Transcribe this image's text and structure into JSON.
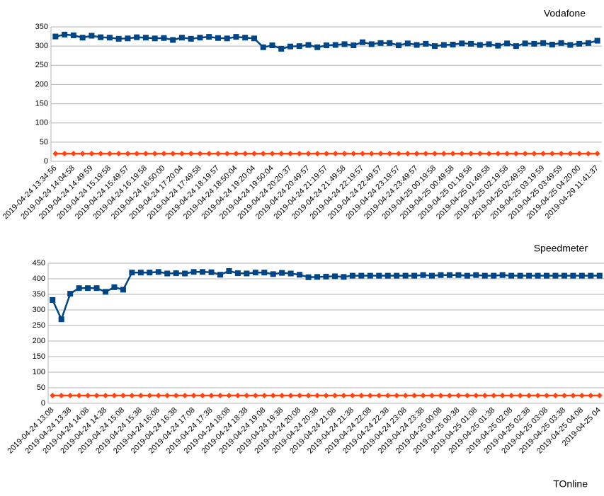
{
  "chart_data": [
    {
      "type": "line",
      "title": "Vodafone",
      "categories": [
        "2019-04-24 13:34:56",
        null,
        "2019-04-24 14:04:58",
        null,
        "2019-04-24 14:49:59",
        null,
        "2019-04-24 15:19:58",
        null,
        "2019-04-24 15:49:57",
        null,
        "2019-04-24 16:19:58",
        null,
        "2019-04-24 16:50:00",
        null,
        "2019-04-24 17:20:04",
        null,
        "2019-04-24 17:49:58",
        null,
        "2019-04-24 18:19:57",
        null,
        "2019-04-24 18:50:04",
        null,
        "2019-04-24 19:20:04",
        null,
        "2019-04-24 19:50:04",
        null,
        "2019-04-24 20:20:37",
        null,
        "2019-04-24 20:49:57",
        null,
        "2019-04-24 21:19:57",
        null,
        "2019-04-24 21:49:58",
        null,
        "2019-04-24 22:19:57",
        null,
        "2019-04-24 22:49:57",
        null,
        "2019-04-24 23:19:57",
        null,
        "2019-04-24 23:49:57",
        null,
        "2019-04-25 00:19:58",
        null,
        "2019-04-25 00:49:58",
        null,
        "2019-04-25 01:19:58",
        null,
        "2019-04-25 01:49:58",
        null,
        "2019-04-25 02:19:58",
        null,
        "2019-04-25 02:49:59",
        null,
        "2019-04-25 03:19:59",
        null,
        "2019-04-25 03:49:59",
        null,
        "2019-04-25 04:20:00",
        null,
        "2019-04-29 11:41:37"
      ],
      "series": [
        {
          "color": "#004586",
          "marker": "square",
          "values": [
            325,
            330,
            328,
            322,
            327,
            323,
            322,
            319,
            320,
            323,
            322,
            320,
            321,
            316,
            322,
            319,
            322,
            324,
            321,
            320,
            324,
            322,
            320,
            297,
            302,
            293,
            299,
            300,
            303,
            297,
            302,
            303,
            305,
            302,
            310,
            305,
            308,
            308,
            302,
            307,
            303,
            306,
            300,
            303,
            304,
            307,
            306,
            303,
            305,
            301,
            307,
            300,
            307,
            306,
            308,
            304,
            308,
            303,
            306,
            308,
            314
          ]
        },
        {
          "color": "#ff420e",
          "marker": "diamond",
          "values": [
            20,
            20,
            20,
            20,
            20,
            20,
            20,
            20,
            20,
            20,
            20,
            20,
            20,
            20,
            20,
            20,
            20,
            20,
            20,
            20,
            20,
            20,
            20,
            20,
            20,
            20,
            20,
            20,
            20,
            20,
            20,
            20,
            20,
            20,
            20,
            20,
            20,
            20,
            20,
            20,
            20,
            20,
            20,
            20,
            20,
            20,
            20,
            20,
            20,
            20,
            20,
            20,
            20,
            20,
            20,
            20,
            20,
            20,
            20,
            20,
            20
          ]
        }
      ],
      "ylim": [
        0,
        350
      ],
      "yticks": [
        0,
        50,
        100,
        150,
        200,
        250,
        300,
        350
      ],
      "grid": true
    },
    {
      "type": "line",
      "title": "Speedmeter",
      "categories": [
        "2019-04-24 13:08",
        null,
        "2019-04-24 13:38",
        null,
        "2019-04-24 14:08",
        null,
        "2019-04-24 14:38",
        null,
        "2019-04-24 15:08",
        null,
        "2019-04-24 15:38",
        null,
        "2019-04-24 16:08",
        null,
        "2019-04-24 16:38",
        null,
        "2019-04-24 17:08",
        null,
        "2019-04-24 17:38",
        null,
        "2019-04-24 18:08",
        null,
        "2019-04-24 18:38",
        null,
        "2019-04-24 19:08",
        null,
        "2019-04-24 19:38",
        null,
        "2019-04-24 20:08",
        null,
        "2019-04-24 20:38",
        null,
        "2019-04-24 21:08",
        null,
        "2019-04-24 21:38",
        null,
        "2019-04-24 22:08",
        null,
        "2019-04-24 22:38",
        null,
        "2019-04-24 23:08",
        null,
        "2019-04-24 23:38",
        null,
        "2019-04-25 00:08",
        null,
        "2019-04-25 00:38",
        null,
        "2019-04-25 01:08",
        null,
        "2019-04-25 01:38",
        null,
        "2019-04-25 02:08",
        null,
        "2019-04-25 02:38",
        null,
        "2019-04-25 03:08",
        null,
        "2019-04-25 03:38",
        null,
        "2019-04-25 04:08",
        null,
        "2019-04-25 04"
      ],
      "series": [
        {
          "color": "#004586",
          "marker": "square",
          "values": [
            332,
            270,
            352,
            370,
            370,
            370,
            358,
            373,
            365,
            420,
            420,
            420,
            422,
            417,
            418,
            417,
            422,
            422,
            421,
            413,
            425,
            418,
            417,
            420,
            420,
            415,
            419,
            417,
            413,
            405,
            406,
            407,
            408,
            406,
            410,
            410,
            410,
            410,
            410,
            410,
            410,
            410,
            412,
            410,
            412,
            412,
            412,
            410,
            412,
            410,
            410,
            412,
            410,
            410,
            410,
            410,
            410,
            410,
            410,
            410,
            410,
            410,
            410
          ]
        },
        {
          "color": "#ff420e",
          "marker": "diamond",
          "values": [
            25,
            25,
            25,
            25,
            25,
            25,
            25,
            25,
            25,
            25,
            25,
            25,
            25,
            25,
            25,
            25,
            25,
            25,
            25,
            25,
            25,
            25,
            25,
            25,
            25,
            25,
            25,
            25,
            25,
            25,
            25,
            25,
            25,
            25,
            25,
            25,
            25,
            25,
            25,
            25,
            25,
            25,
            25,
            25,
            25,
            25,
            25,
            25,
            25,
            25,
            25,
            25,
            25,
            25,
            25,
            25,
            25,
            25,
            25,
            25,
            25,
            25,
            25
          ]
        }
      ],
      "ylim": [
        0,
        450
      ],
      "yticks": [
        0,
        50,
        100,
        150,
        200,
        250,
        300,
        350,
        400,
        450
      ],
      "grid": true
    },
    {
      "type": "line",
      "title": "TOnline"
    }
  ]
}
